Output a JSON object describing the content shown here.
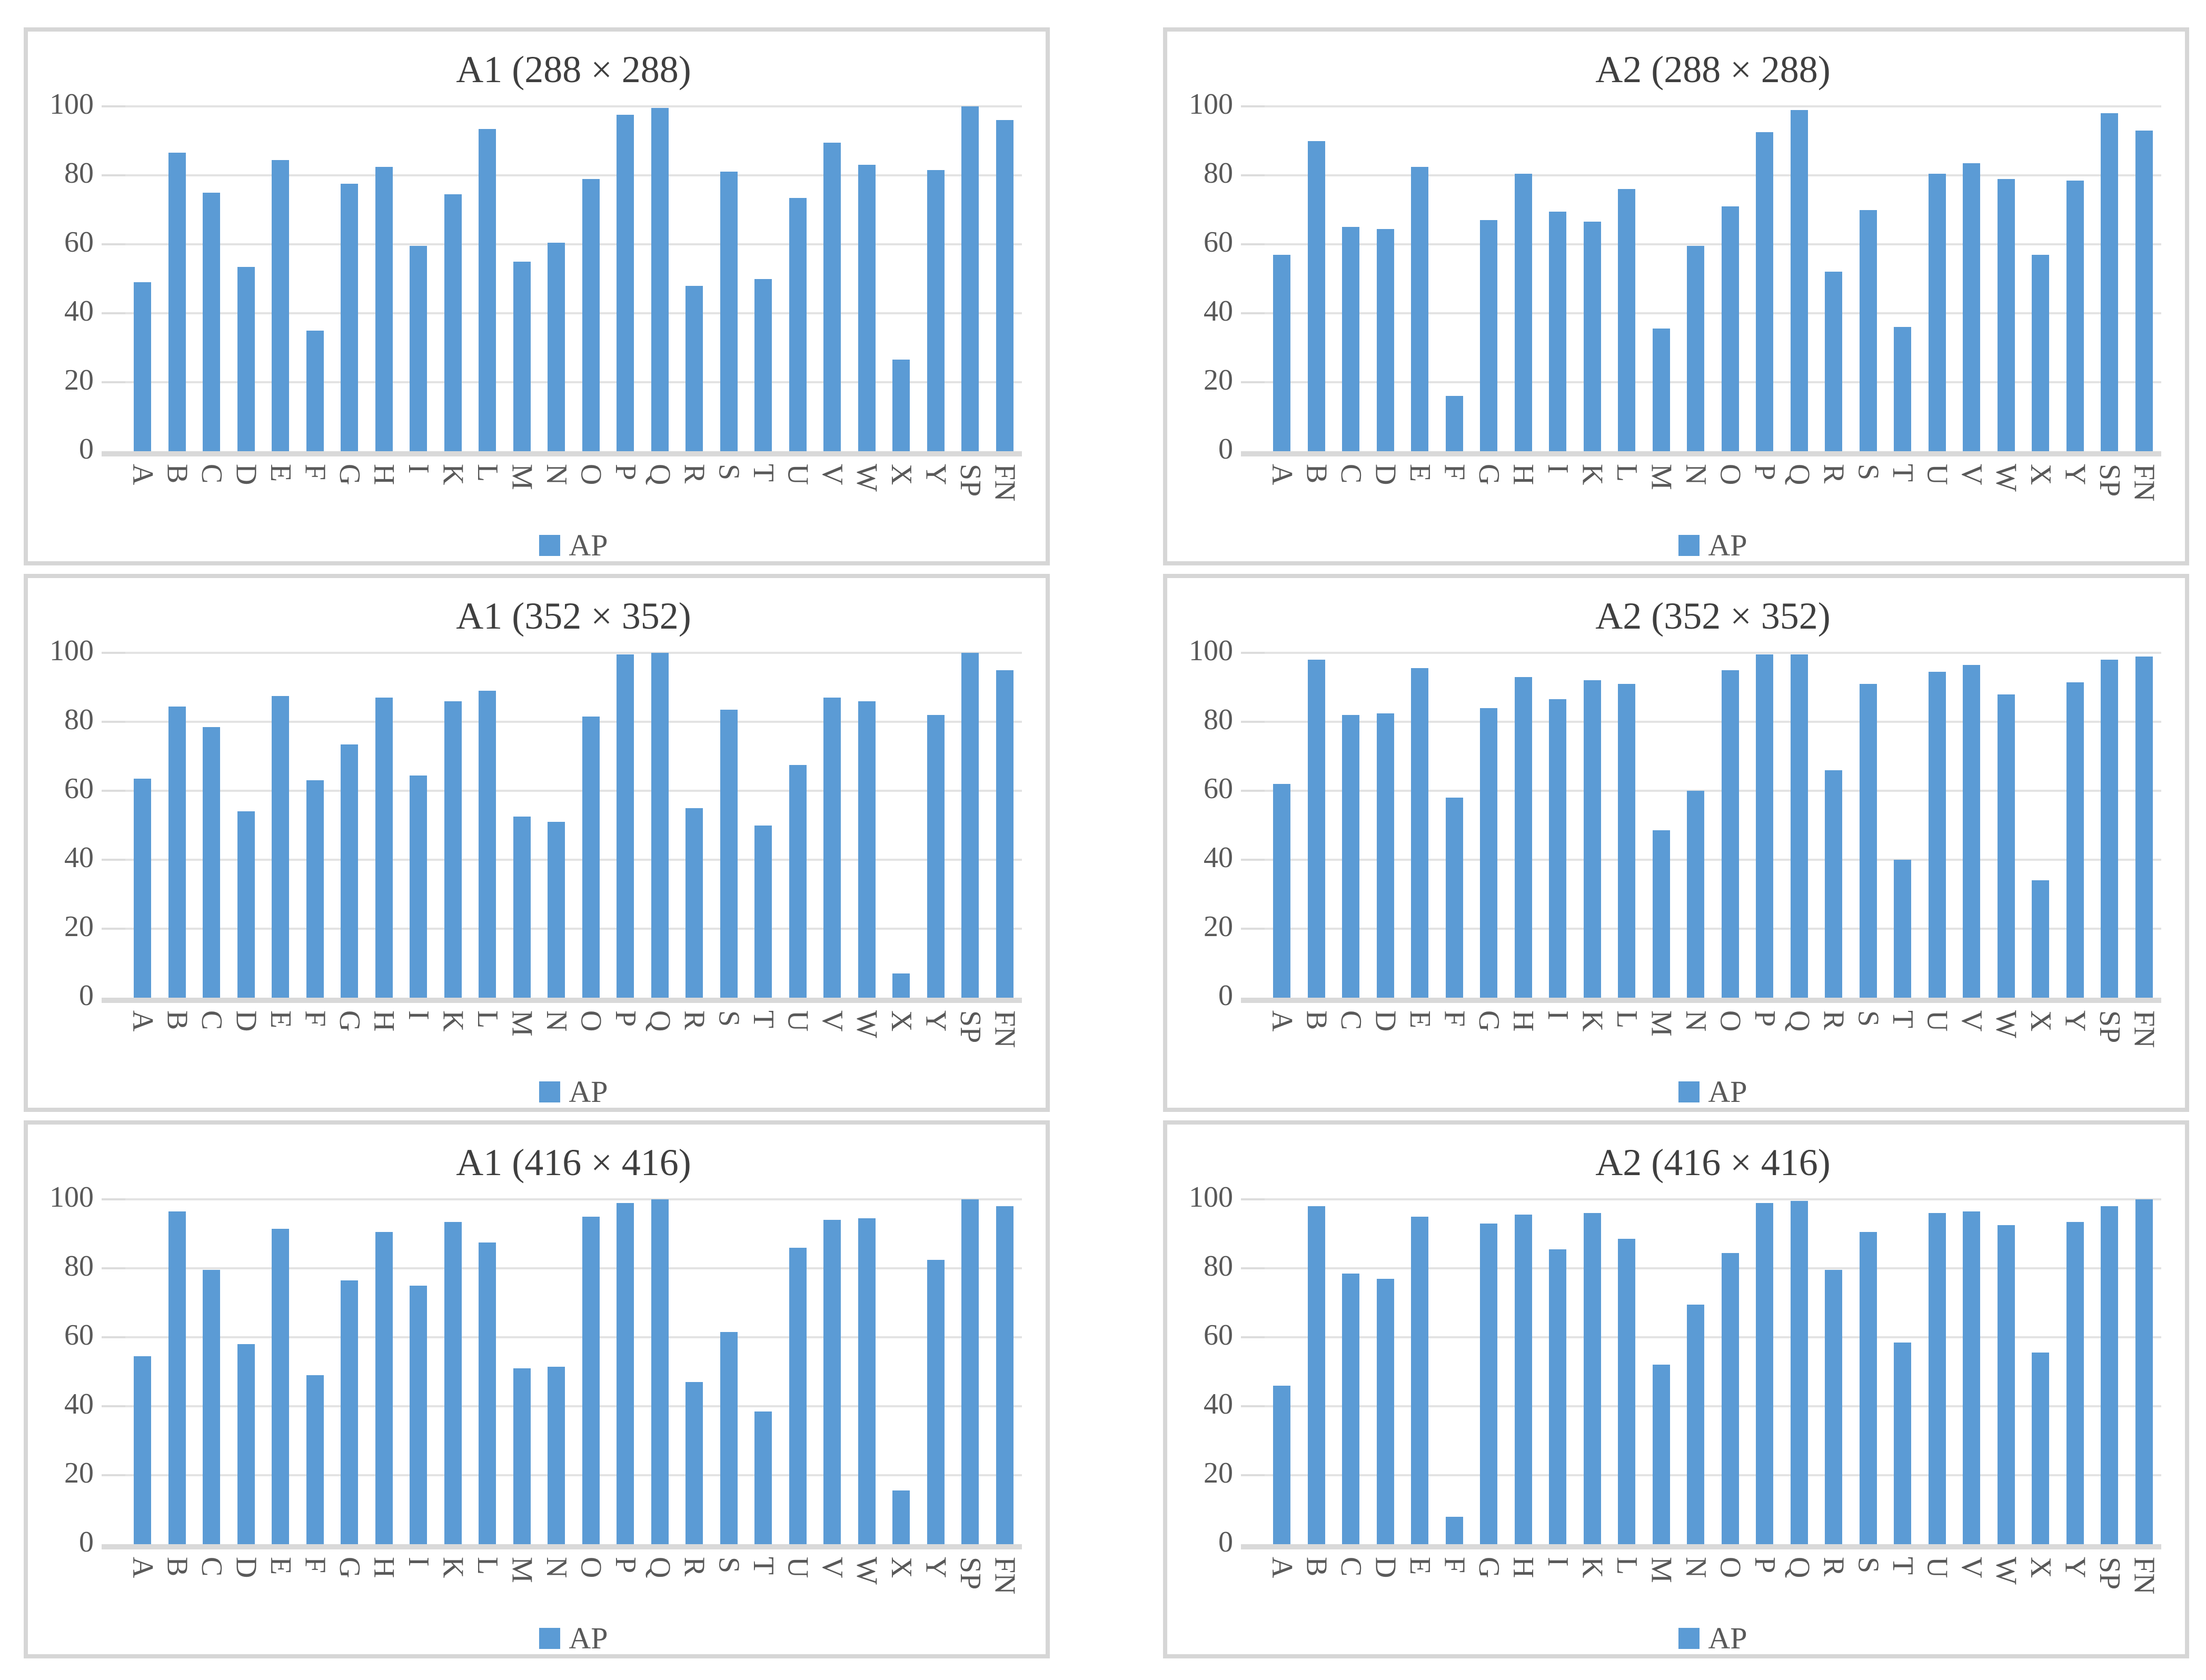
{
  "legend_label": "AP",
  "colors": {
    "bar": "#5B9BD5",
    "gridline": "#E3E3E3",
    "baseline": "#D9D9D9",
    "panel_border": "#D6D6D6",
    "title_text": "#3F3F3F",
    "axis_text": "#595959"
  },
  "y_axis": {
    "ticks": [
      0,
      20,
      40,
      60,
      80,
      100
    ],
    "min": 0,
    "max": 100,
    "grid": true
  },
  "categories": [
    "A",
    "B",
    "C",
    "D",
    "E",
    "F",
    "G",
    "H",
    "I",
    "K",
    "L",
    "M",
    "N",
    "O",
    "P",
    "Q",
    "R",
    "S",
    "T",
    "U",
    "V",
    "W",
    "X",
    "Y",
    "SP",
    "FN"
  ],
  "chart_data": [
    {
      "type": "bar",
      "title": "A1 (288 × 288)",
      "legend": "AP",
      "ylim": [
        0,
        100
      ],
      "categories": [
        "A",
        "B",
        "C",
        "D",
        "E",
        "F",
        "G",
        "H",
        "I",
        "K",
        "L",
        "M",
        "N",
        "O",
        "P",
        "Q",
        "R",
        "S",
        "T",
        "U",
        "V",
        "W",
        "X",
        "Y",
        "SP",
        "FN"
      ],
      "values": [
        49,
        86.5,
        75,
        53.5,
        84.5,
        35,
        77.5,
        82.5,
        59.5,
        74.5,
        93.5,
        55,
        60.5,
        79,
        97.5,
        99.5,
        48,
        81,
        50,
        73.5,
        89.5,
        83,
        26.5,
        81.5,
        100,
        96
      ]
    },
    {
      "type": "bar",
      "title": "A2 (288 × 288)",
      "legend": "AP",
      "ylim": [
        0,
        100
      ],
      "categories": [
        "A",
        "B",
        "C",
        "D",
        "E",
        "F",
        "G",
        "H",
        "I",
        "K",
        "L",
        "M",
        "N",
        "O",
        "P",
        "Q",
        "R",
        "S",
        "T",
        "U",
        "V",
        "W",
        "X",
        "Y",
        "SP",
        "FN"
      ],
      "values": [
        57,
        90,
        65,
        64.5,
        82.5,
        16,
        67,
        80.5,
        69.5,
        66.5,
        76,
        35.5,
        59.5,
        71,
        92.5,
        99,
        52,
        70,
        36,
        80.5,
        83.5,
        79,
        57,
        78.5,
        98,
        93
      ]
    },
    {
      "type": "bar",
      "title": "A1 (352 × 352)",
      "legend": "AP",
      "ylim": [
        0,
        100
      ],
      "categories": [
        "A",
        "B",
        "C",
        "D",
        "E",
        "F",
        "G",
        "H",
        "I",
        "K",
        "L",
        "M",
        "N",
        "O",
        "P",
        "Q",
        "R",
        "S",
        "T",
        "U",
        "V",
        "W",
        "X",
        "Y",
        "SP",
        "FN"
      ],
      "values": [
        63.5,
        84.5,
        78.5,
        54,
        87.5,
        63,
        73.5,
        87,
        64.5,
        86,
        89,
        52.5,
        51,
        81.5,
        99.5,
        100,
        55,
        83.5,
        50,
        67.5,
        87,
        86,
        7,
        82,
        100,
        95
      ]
    },
    {
      "type": "bar",
      "title": "A2 (352 × 352)",
      "legend": "AP",
      "ylim": [
        0,
        100
      ],
      "categories": [
        "A",
        "B",
        "C",
        "D",
        "E",
        "F",
        "G",
        "H",
        "I",
        "K",
        "L",
        "M",
        "N",
        "O",
        "P",
        "Q",
        "R",
        "S",
        "T",
        "U",
        "V",
        "W",
        "X",
        "Y",
        "SP",
        "FN"
      ],
      "values": [
        62,
        98,
        82,
        82.5,
        95.5,
        58,
        84,
        93,
        86.5,
        92,
        91,
        48.5,
        60,
        95,
        99.5,
        99.5,
        66,
        91,
        40,
        94.5,
        96.5,
        88,
        34,
        91.5,
        98,
        99
      ]
    },
    {
      "type": "bar",
      "title": "A1 (416 × 416)",
      "legend": "AP",
      "ylim": [
        0,
        100
      ],
      "categories": [
        "A",
        "B",
        "C",
        "D",
        "E",
        "F",
        "G",
        "H",
        "I",
        "K",
        "L",
        "M",
        "N",
        "O",
        "P",
        "Q",
        "R",
        "S",
        "T",
        "U",
        "V",
        "W",
        "X",
        "Y",
        "SP",
        "FN"
      ],
      "values": [
        54.5,
        96.5,
        79.5,
        58,
        91.5,
        49,
        76.5,
        90.5,
        75,
        93.5,
        87.5,
        51,
        51.5,
        95,
        99,
        100,
        47,
        61.5,
        38.5,
        86,
        94,
        94.5,
        15.5,
        82.5,
        100,
        98
      ]
    },
    {
      "type": "bar",
      "title": "A2 (416 × 416)",
      "legend": "AP",
      "ylim": [
        0,
        100
      ],
      "categories": [
        "A",
        "B",
        "C",
        "D",
        "E",
        "F",
        "G",
        "H",
        "I",
        "K",
        "L",
        "M",
        "N",
        "O",
        "P",
        "Q",
        "R",
        "S",
        "T",
        "U",
        "V",
        "W",
        "X",
        "Y",
        "SP",
        "FN"
      ],
      "values": [
        46,
        98,
        78.5,
        77,
        95,
        8,
        93,
        95.5,
        85.5,
        96,
        88.5,
        52,
        69.5,
        84.5,
        99,
        99.5,
        79.5,
        90.5,
        58.5,
        96,
        96.5,
        92.5,
        55.5,
        93.5,
        98,
        100
      ]
    }
  ]
}
